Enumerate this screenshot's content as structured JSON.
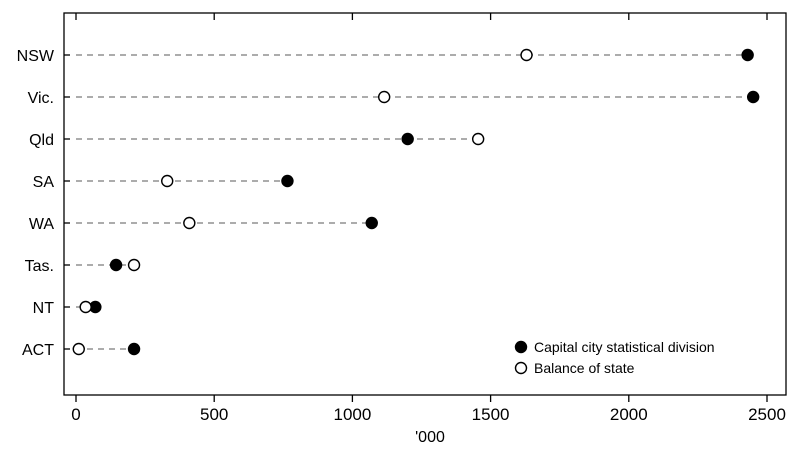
{
  "chart_data": {
    "type": "scatter",
    "title": "",
    "xlabel": "'000",
    "ylabel": "",
    "xlim": [
      -40,
      2555
    ],
    "xticks": [
      0,
      500,
      1000,
      1500,
      2000,
      2500
    ],
    "xtick_labels": [
      "0",
      "500",
      "1000",
      "1500",
      "2000",
      "2500"
    ],
    "categories": [
      "NSW",
      "Vic.",
      "Qld",
      "SA",
      "WA",
      "Tas.",
      "NT",
      "ACT"
    ],
    "series": [
      {
        "name": "Capital city statistical division",
        "marker": "filled-circle",
        "values": [
          2430,
          2450,
          1200,
          765,
          1070,
          145,
          70,
          210
        ]
      },
      {
        "name": "Balance of state",
        "marker": "open-circle",
        "values": [
          1630,
          1115,
          1455,
          330,
          410,
          210,
          35,
          10
        ]
      }
    ],
    "legend_position": "bottom-right",
    "grid": false
  }
}
